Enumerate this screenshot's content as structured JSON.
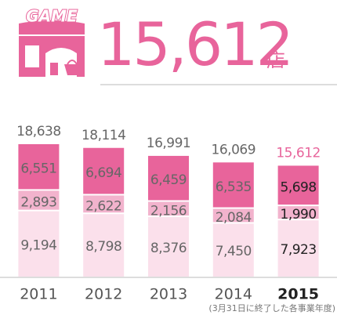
{
  "header": {
    "icon_text": "GAME",
    "count": "15,612",
    "unit": "店"
  },
  "chart_data": {
    "type": "stacked_bar",
    "categories": [
      "2011",
      "2012",
      "2013",
      "2014",
      "2015"
    ],
    "series": [
      {
        "color": "#fbe0eb",
        "values": [
          9194,
          8798,
          8376,
          7450,
          7923
        ],
        "value_labels": [
          "9,194",
          "8,798",
          "8,376",
          "7,450",
          "7,923"
        ]
      },
      {
        "color": "#f2b3cd",
        "values": [
          2893,
          2622,
          2156,
          2084,
          1990
        ],
        "value_labels": [
          "2,893",
          "2,622",
          "2,156",
          "2,084",
          "1,990"
        ]
      },
      {
        "color": "#e8649b",
        "values": [
          6551,
          6694,
          6459,
          6535,
          5698
        ],
        "value_labels": [
          "6,551",
          "6,694",
          "6,459",
          "6,535",
          "5,698"
        ]
      }
    ],
    "totals": [
      18638,
      18114,
      16991,
      16069,
      15612
    ],
    "total_labels": [
      "18,638",
      "18,114",
      "16,991",
      "16,069",
      "15,612"
    ],
    "footnote": "(3月31日に終了した各事業年度)"
  }
}
